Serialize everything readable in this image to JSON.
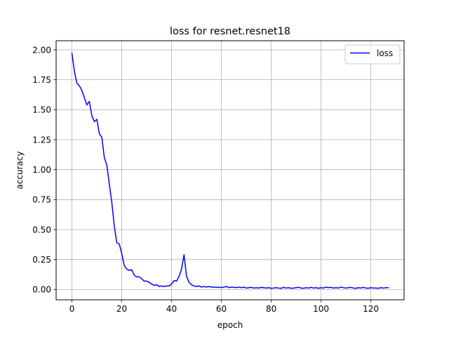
{
  "chart_data": {
    "type": "line",
    "title": "loss for resnet.resnet18",
    "xlabel": "epoch",
    "ylabel": "accuracy",
    "xlim": [
      -6.35,
      133.35
    ],
    "ylim": [
      -0.0858,
      2.076
    ],
    "xticks": [
      0,
      20,
      40,
      60,
      80,
      100,
      120
    ],
    "yticks": [
      0.0,
      0.25,
      0.5,
      0.75,
      1.0,
      1.25,
      1.5,
      1.75,
      2.0
    ],
    "grid": true,
    "legend": {
      "position": "top-right"
    },
    "series": [
      {
        "name": "loss",
        "color": "#0000ff",
        "x": [
          0,
          1,
          2,
          3,
          4,
          5,
          6,
          7,
          8,
          9,
          10,
          11,
          12,
          13,
          14,
          15,
          16,
          17,
          18,
          19,
          20,
          21,
          22,
          23,
          24,
          25,
          26,
          27,
          28,
          29,
          30,
          31,
          32,
          33,
          34,
          35,
          36,
          37,
          38,
          39,
          40,
          41,
          42,
          43,
          44,
          45,
          46,
          47,
          48,
          49,
          50,
          51,
          52,
          53,
          54,
          55,
          56,
          57,
          58,
          59,
          60,
          61,
          62,
          63,
          64,
          65,
          66,
          67,
          68,
          69,
          70,
          71,
          72,
          73,
          74,
          75,
          76,
          77,
          78,
          79,
          80,
          81,
          82,
          83,
          84,
          85,
          86,
          87,
          88,
          89,
          90,
          91,
          92,
          93,
          94,
          95,
          96,
          97,
          98,
          99,
          100,
          101,
          102,
          103,
          104,
          105,
          106,
          107,
          108,
          109,
          110,
          111,
          112,
          113,
          114,
          115,
          116,
          117,
          118,
          119,
          120,
          121,
          122,
          123,
          124,
          125,
          126,
          127
        ],
        "y": [
          1.97,
          1.82,
          1.72,
          1.7,
          1.66,
          1.6,
          1.54,
          1.57,
          1.45,
          1.4,
          1.42,
          1.3,
          1.27,
          1.1,
          1.04,
          0.88,
          0.73,
          0.53,
          0.39,
          0.38,
          0.3,
          0.2,
          0.17,
          0.16,
          0.165,
          0.12,
          0.105,
          0.105,
          0.09,
          0.07,
          0.07,
          0.06,
          0.045,
          0.035,
          0.04,
          0.025,
          0.03,
          0.025,
          0.03,
          0.03,
          0.045,
          0.075,
          0.07,
          0.11,
          0.17,
          0.29,
          0.11,
          0.06,
          0.04,
          0.03,
          0.025,
          0.03,
          0.02,
          0.025,
          0.02,
          0.025,
          0.02,
          0.02,
          0.018,
          0.02,
          0.015,
          0.02,
          0.025,
          0.015,
          0.02,
          0.018,
          0.015,
          0.02,
          0.015,
          0.02,
          0.012,
          0.015,
          0.018,
          0.012,
          0.015,
          0.012,
          0.018,
          0.015,
          0.012,
          0.015,
          0.01,
          0.012,
          0.015,
          0.012,
          0.01,
          0.018,
          0.012,
          0.015,
          0.01,
          0.012,
          0.015,
          0.018,
          0.012,
          0.01,
          0.015,
          0.012,
          0.018,
          0.012,
          0.015,
          0.01,
          0.015,
          0.012,
          0.02,
          0.015,
          0.018,
          0.012,
          0.015,
          0.012,
          0.02,
          0.015,
          0.012,
          0.015,
          0.018,
          0.012,
          0.01,
          0.015,
          0.012,
          0.018,
          0.012,
          0.01,
          0.015,
          0.012,
          0.012,
          0.01,
          0.015,
          0.012,
          0.015,
          0.015
        ]
      }
    ]
  }
}
